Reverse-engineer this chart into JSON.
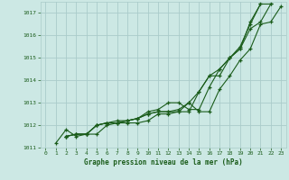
{
  "title": "Graphe pression niveau de la mer (hPa)",
  "background_color": "#cce8e4",
  "grid_color": "#aaccca",
  "line_color": "#1a5c1a",
  "marker": "+",
  "xlim": [
    -0.5,
    23.5
  ],
  "ylim": [
    1011,
    1017.5
  ],
  "xticks": [
    0,
    1,
    2,
    3,
    4,
    5,
    6,
    7,
    8,
    9,
    10,
    11,
    12,
    13,
    14,
    15,
    16,
    17,
    18,
    19,
    20,
    21,
    22,
    23
  ],
  "yticks": [
    1011,
    1012,
    1013,
    1014,
    1015,
    1016,
    1017
  ],
  "series": [
    {
      "x_start": 1,
      "values": [
        1011.2,
        1011.8,
        1011.5,
        1011.6,
        1011.6,
        1012.0,
        1012.1,
        1012.1,
        1012.1,
        1012.2,
        1012.5,
        1012.5,
        1012.6,
        1013.0,
        1012.6,
        1012.6,
        1013.6,
        1014.2,
        1014.9,
        1015.4,
        1016.5,
        1016.6,
        1017.3
      ]
    },
    {
      "x_start": 2,
      "values": [
        1011.5,
        1011.6,
        1011.6,
        1012.0,
        1012.1,
        1012.1,
        1012.2,
        1012.3,
        1012.5,
        1012.6,
        1012.6,
        1012.6,
        1012.6,
        1013.5,
        1014.2,
        1014.2,
        1015.0,
        1015.4,
        1016.6,
        1017.4,
        1017.4
      ]
    },
    {
      "x_start": 2,
      "values": [
        1011.5,
        1011.6,
        1011.6,
        1012.0,
        1012.1,
        1012.1,
        1012.2,
        1012.3,
        1012.5,
        1012.6,
        1012.6,
        1012.7,
        1013.0,
        1013.5,
        1014.2,
        1014.5,
        1015.0,
        1015.4,
        1016.3,
        1016.6,
        1017.4
      ]
    },
    {
      "x_start": 2,
      "values": [
        1011.5,
        1011.6,
        1011.6,
        1012.0,
        1012.1,
        1012.2,
        1012.2,
        1012.3,
        1012.6,
        1012.7,
        1013.0,
        1013.0,
        1012.7,
        1012.7,
        1013.7,
        1014.5,
        1015.0,
        1015.5,
        1016.5,
        1017.4
      ]
    }
  ]
}
